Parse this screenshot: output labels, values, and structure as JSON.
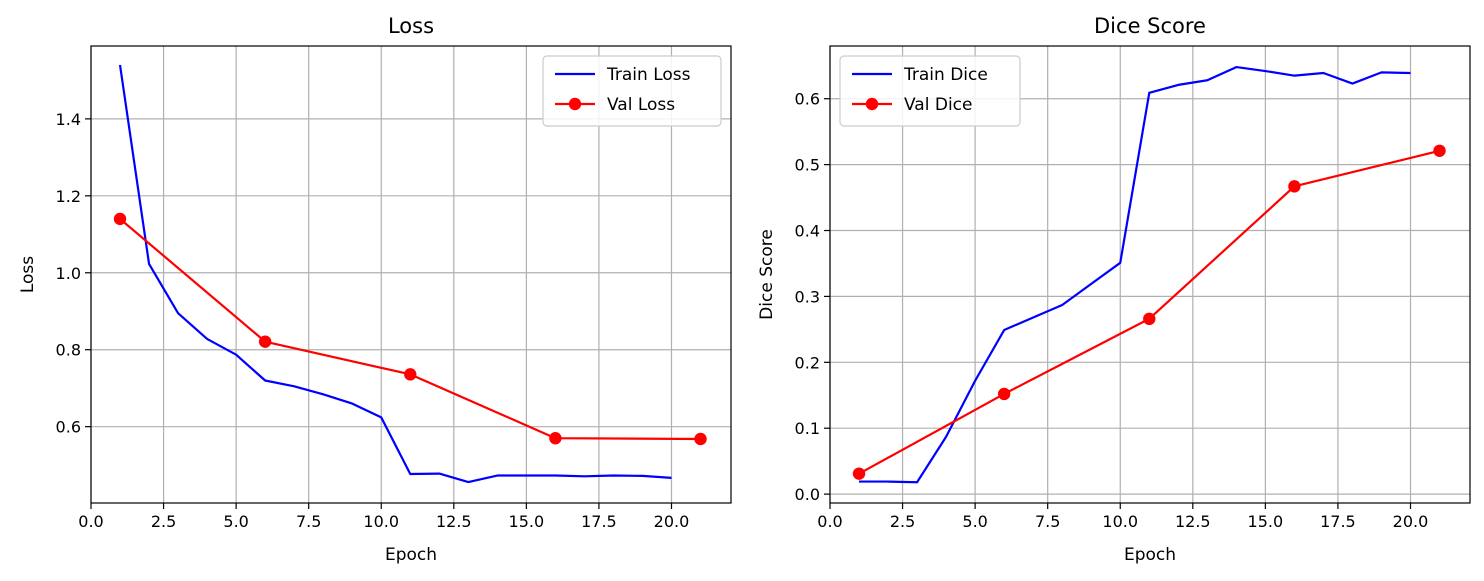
{
  "chart_data": [
    {
      "type": "line",
      "title": "Loss",
      "xlabel": "Epoch",
      "ylabel": "Loss",
      "xlim": [
        0,
        22.05
      ],
      "ylim": [
        0.4016,
        1.5894
      ],
      "xticks": [
        0.0,
        2.5,
        5.0,
        7.5,
        10.0,
        12.5,
        15.0,
        17.5,
        20.0
      ],
      "xtick_labels": [
        "0.0",
        "2.5",
        "5.0",
        "7.5",
        "10.0",
        "12.5",
        "15.0",
        "17.5",
        "20.0"
      ],
      "yticks": [
        0.6,
        0.8,
        1.0,
        1.2,
        1.4
      ],
      "ytick_labels": [
        "0.6",
        "0.8",
        "1.0",
        "1.2",
        "1.4"
      ],
      "grid": true,
      "legend": "top-right",
      "series": [
        {
          "name": "Train Loss",
          "color": "#0000ff",
          "marker": "none",
          "x": [
            1,
            2,
            3,
            4,
            5,
            6,
            7,
            8,
            9,
            10,
            11,
            12,
            13,
            14,
            15,
            16,
            17,
            18,
            19,
            20
          ],
          "y": [
            1.54,
            1.023,
            0.895,
            0.828,
            0.787,
            0.72,
            0.705,
            0.684,
            0.66,
            0.624,
            0.477,
            0.478,
            0.456,
            0.473,
            0.473,
            0.473,
            0.471,
            0.473,
            0.472,
            0.467
          ]
        },
        {
          "name": "Val Loss",
          "color": "#ff0000",
          "marker": "circle",
          "x": [
            1,
            6,
            11,
            16,
            21
          ],
          "y": [
            1.14,
            0.821,
            0.736,
            0.57,
            0.568
          ]
        }
      ]
    },
    {
      "type": "line",
      "title": "Dice Score",
      "xlabel": "Epoch",
      "ylabel": "Dice Score",
      "xlim": [
        0,
        22.05
      ],
      "ylim": [
        -0.0135,
        0.68
      ],
      "xticks": [
        0.0,
        2.5,
        5.0,
        7.5,
        10.0,
        12.5,
        15.0,
        17.5,
        20.0
      ],
      "xtick_labels": [
        "0.0",
        "2.5",
        "5.0",
        "7.5",
        "10.0",
        "12.5",
        "15.0",
        "17.5",
        "20.0"
      ],
      "yticks": [
        0.0,
        0.1,
        0.2,
        0.3,
        0.4,
        0.5,
        0.6
      ],
      "ytick_labels": [
        "0.0",
        "0.1",
        "0.2",
        "0.3",
        "0.4",
        "0.5",
        "0.6"
      ],
      "grid": true,
      "legend": "top-left",
      "series": [
        {
          "name": "Train Dice",
          "color": "#0000ff",
          "marker": "none",
          "x": [
            1,
            2,
            3,
            4,
            5,
            6,
            7,
            8,
            9,
            10,
            11,
            12,
            13,
            14,
            15,
            16,
            17,
            18,
            19,
            20
          ],
          "y": [
            0.019,
            0.019,
            0.018,
            0.087,
            0.172,
            0.249,
            0.268,
            0.287,
            0.319,
            0.351,
            0.609,
            0.621,
            0.628,
            0.648,
            0.642,
            0.635,
            0.639,
            0.623,
            0.64,
            0.639
          ]
        },
        {
          "name": "Val Dice",
          "color": "#ff0000",
          "marker": "circle",
          "x": [
            1,
            6,
            11,
            16,
            21
          ],
          "y": [
            0.031,
            0.152,
            0.266,
            0.467,
            0.521
          ]
        }
      ]
    }
  ]
}
